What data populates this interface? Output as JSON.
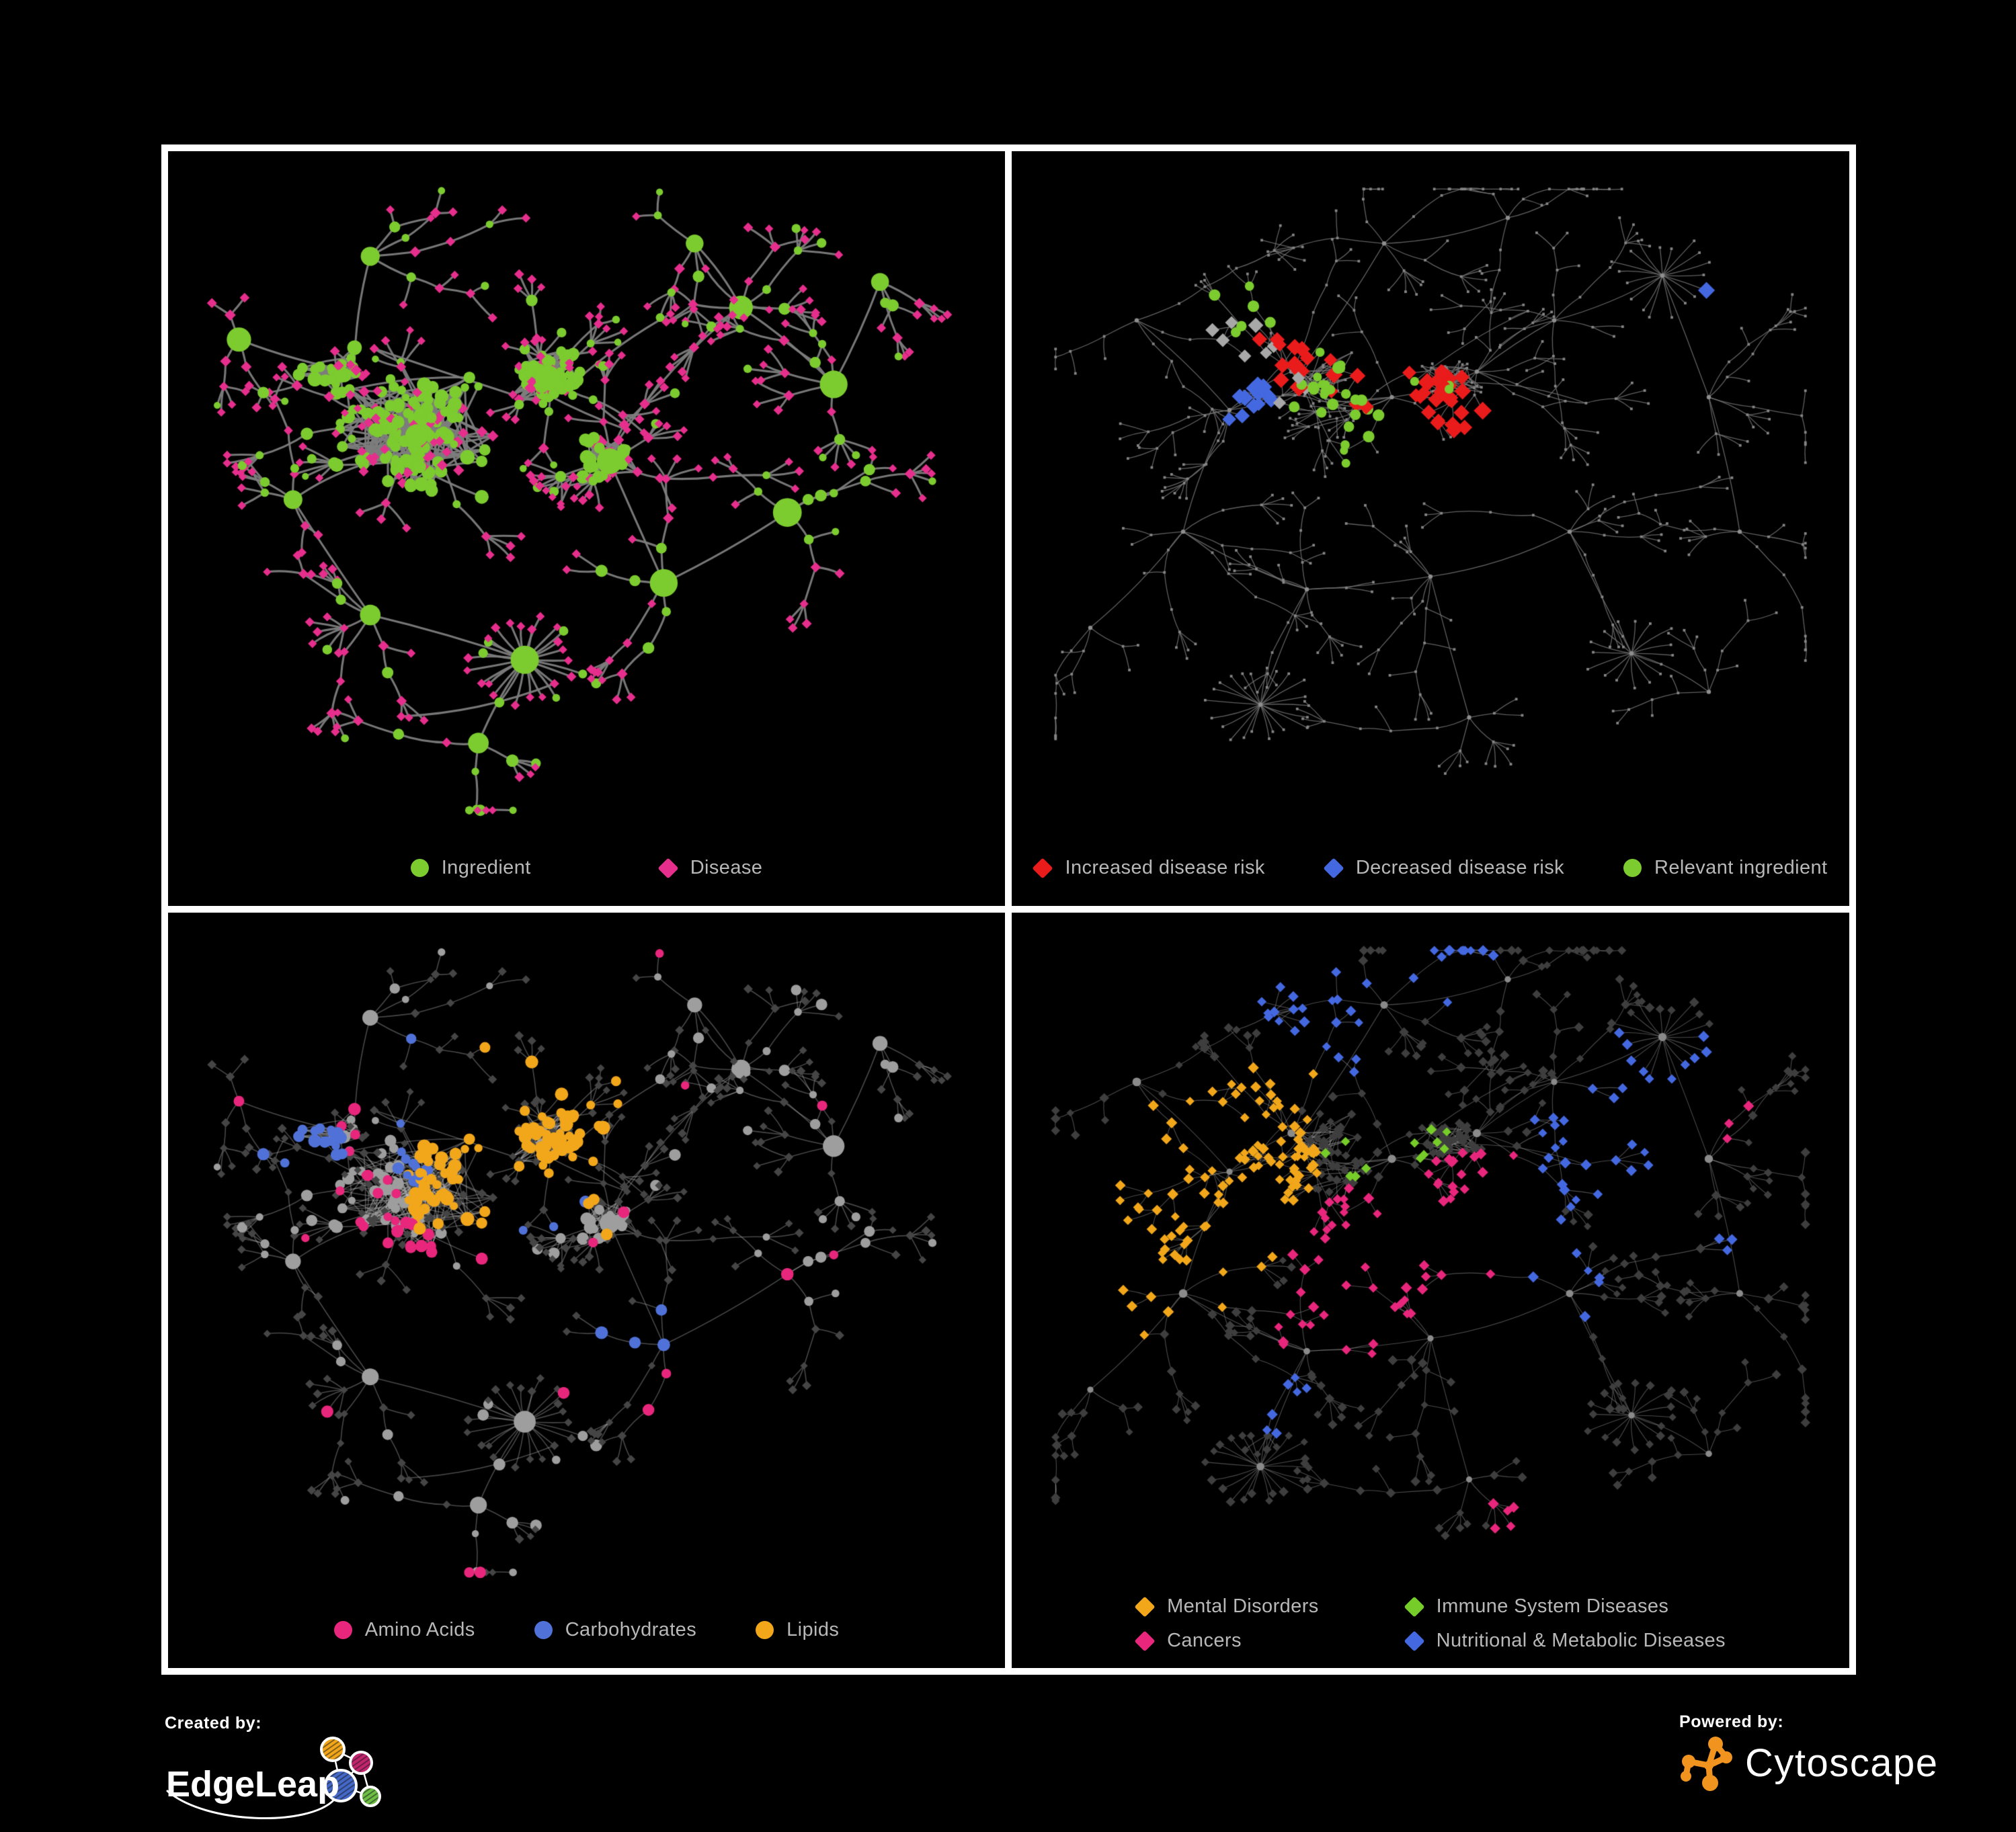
{
  "page": {
    "background": "#000000",
    "frame_color": "#ffffff"
  },
  "palette": {
    "ingredient_green": "#7CCB2F",
    "disease_pink": "#E62E8C",
    "risk_red": "#EA1B1B",
    "risk_blue": "#4468E0",
    "carb_blue": "#5072D8",
    "lipid_orange": "#F2A71B",
    "amino_pink": "#E8267C",
    "nutritional_blue": "#4468E0",
    "immune_green": "#76CC28",
    "mental_orange": "#F2A71B",
    "cancer_pink": "#E8267C",
    "gray_node": "#9e9e9e",
    "gray_diamond": "#a8a8a8",
    "dark_diamond": "#3e3e3e",
    "tiny_node": "#858585",
    "edge_gray": "#7d7d7d",
    "legend_text": "#b8b8b8",
    "cytoscape_orange": "#F0941F",
    "edgeleap_magenta": "#C2256E",
    "edgeleap_blue": "#4468C8",
    "edgeleap_green": "#6DBE45"
  },
  "panels": [
    {
      "id": "ingredient-disease",
      "legend_layout": "flex2",
      "legend": [
        {
          "label": "Ingredient",
          "shape": "circle",
          "color": "#7CCB2F"
        },
        {
          "label": "Disease",
          "shape": "diamond",
          "color": "#E62E8C"
        }
      ]
    },
    {
      "id": "disease-risk",
      "legend_layout": "flex3",
      "legend": [
        {
          "label": "Increased disease risk",
          "shape": "diamond",
          "color": "#EA1B1B"
        },
        {
          "label": "Decreased disease risk",
          "shape": "diamond",
          "color": "#4468E0"
        },
        {
          "label": "Relevant ingredient",
          "shape": "circle",
          "color": "#7CCB2F"
        }
      ]
    },
    {
      "id": "ingredient-categories",
      "legend_layout": "flex3",
      "legend": [
        {
          "label": "Amino Acids",
          "shape": "circle",
          "color": "#E8267C"
        },
        {
          "label": "Carbohydrates",
          "shape": "circle",
          "color": "#5072D8"
        },
        {
          "label": "Lipids",
          "shape": "circle",
          "color": "#F2A71B"
        }
      ]
    },
    {
      "id": "disease-categories",
      "legend_layout": "grid2",
      "legend": [
        {
          "label": "Mental Disorders",
          "shape": "diamond",
          "color": "#F2A71B"
        },
        {
          "label": "Immune System Diseases",
          "shape": "diamond",
          "color": "#76CC28"
        },
        {
          "label": "Cancers",
          "shape": "diamond",
          "color": "#E8267C"
        },
        {
          "label": "Nutritional & Metabolic Diseases",
          "shape": "diamond",
          "color": "#4468E0"
        }
      ]
    }
  ],
  "footer": {
    "created_by": {
      "label": "Created by:",
      "brand": "EdgeLeap"
    },
    "powered_by": {
      "label": "Powered by:",
      "brand": "Cytoscape"
    }
  }
}
